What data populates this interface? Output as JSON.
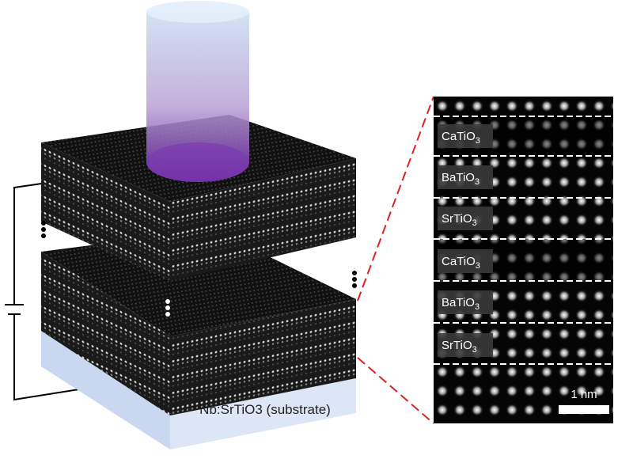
{
  "panel": {
    "layers": [
      {
        "formula": "CaTiO",
        "subscript": "3"
      },
      {
        "formula": "BaTiO",
        "subscript": "3"
      },
      {
        "formula": "SrTiO",
        "subscript": "3"
      },
      {
        "formula": "CaTiO",
        "subscript": "3"
      },
      {
        "formula": "BaTiO",
        "subscript": "3"
      },
      {
        "formula": "SrTiO",
        "subscript": "3"
      }
    ],
    "scale_bar": "1 nm"
  },
  "substrate": "Nb:SrTiO3 (substrate)"
}
